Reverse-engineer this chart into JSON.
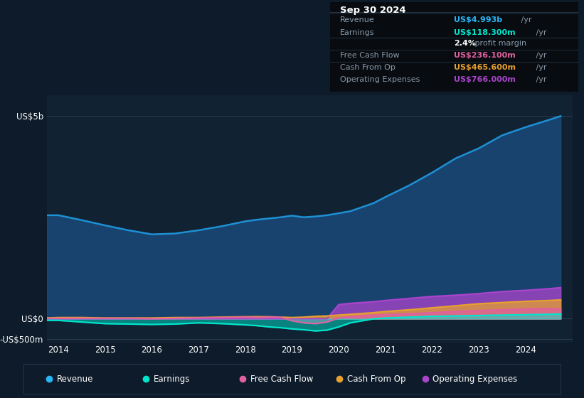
{
  "bg_color": "#0d1b2a",
  "plot_bg_color": "#112233",
  "ylabel_5b": "US$5b",
  "ylabel_0": "US$0",
  "ylabel_neg500m": "-US$500m",
  "x_years": [
    2013.75,
    2014.0,
    2014.5,
    2015.0,
    2015.5,
    2016.0,
    2016.5,
    2017.0,
    2017.5,
    2018.0,
    2018.25,
    2018.5,
    2018.75,
    2019.0,
    2019.25,
    2019.5,
    2019.75,
    2020.0,
    2020.25,
    2020.5,
    2020.75,
    2021.0,
    2021.5,
    2022.0,
    2022.5,
    2023.0,
    2023.5,
    2024.0,
    2024.5,
    2024.75
  ],
  "revenue": [
    2.55,
    2.55,
    2.43,
    2.3,
    2.18,
    2.08,
    2.1,
    2.18,
    2.28,
    2.4,
    2.44,
    2.47,
    2.5,
    2.54,
    2.5,
    2.52,
    2.55,
    2.6,
    2.65,
    2.75,
    2.85,
    3.0,
    3.28,
    3.6,
    3.95,
    4.2,
    4.52,
    4.72,
    4.9,
    4.993
  ],
  "earnings": [
    -0.04,
    -0.04,
    -0.08,
    -0.12,
    -0.13,
    -0.14,
    -0.13,
    -0.1,
    -0.12,
    -0.15,
    -0.17,
    -0.2,
    -0.22,
    -0.25,
    -0.27,
    -0.3,
    -0.28,
    -0.2,
    -0.1,
    -0.05,
    0.0,
    0.02,
    0.04,
    0.06,
    0.07,
    0.08,
    0.09,
    0.1,
    0.11,
    0.118
  ],
  "free_cash_flow": [
    0.01,
    0.01,
    0.01,
    0.01,
    0.01,
    0.0,
    0.01,
    0.02,
    0.03,
    0.04,
    0.03,
    0.04,
    0.04,
    -0.05,
    -0.1,
    -0.12,
    -0.08,
    0.02,
    0.05,
    0.07,
    0.09,
    0.1,
    0.12,
    0.15,
    0.18,
    0.2,
    0.22,
    0.24,
    0.25,
    0.236
  ],
  "cash_from_op": [
    0.02,
    0.03,
    0.03,
    0.02,
    0.02,
    0.02,
    0.03,
    0.03,
    0.04,
    0.05,
    0.05,
    0.05,
    0.04,
    0.03,
    0.04,
    0.06,
    0.07,
    0.09,
    0.11,
    0.13,
    0.15,
    0.18,
    0.22,
    0.27,
    0.32,
    0.37,
    0.4,
    0.43,
    0.45,
    0.4656
  ],
  "operating_expenses": [
    0.0,
    0.0,
    0.0,
    0.0,
    0.0,
    0.0,
    0.0,
    0.0,
    0.0,
    0.0,
    0.0,
    0.0,
    0.0,
    0.0,
    0.0,
    0.0,
    0.0,
    0.35,
    0.38,
    0.4,
    0.42,
    0.45,
    0.5,
    0.55,
    0.58,
    0.62,
    0.67,
    0.7,
    0.74,
    0.766
  ],
  "revenue_color": "#1e90d4",
  "revenue_fill_color": "#1a4a7a",
  "earnings_color": "#00e5cc",
  "earnings_fill_color": "#00e5cc",
  "free_cash_flow_color": "#e060a0",
  "free_cash_flow_fill_color": "#e060a0",
  "cash_from_op_color": "#e8a030",
  "cash_from_op_fill_color": "#e8a030",
  "operating_expenses_color": "#aa44cc",
  "operating_expenses_fill_color": "#aa44cc",
  "info_box": {
    "date": "Sep 30 2024",
    "rows": [
      {
        "label": "Revenue",
        "value": "US$4.993b",
        "suffix": " /yr",
        "value_color": "#29b6f6"
      },
      {
        "label": "Earnings",
        "value": "US$118.300m",
        "suffix": " /yr",
        "value_color": "#00e5cc"
      },
      {
        "label": "",
        "value": "2.4%",
        "suffix": " profit margin",
        "value_color": "white"
      },
      {
        "label": "Free Cash Flow",
        "value": "US$236.100m",
        "suffix": " /yr",
        "value_color": "#e060a0"
      },
      {
        "label": "Cash From Op",
        "value": "US$465.600m",
        "suffix": " /yr",
        "value_color": "#e8a030"
      },
      {
        "label": "Operating Expenses",
        "value": "US$766.000m",
        "suffix": " /yr",
        "value_color": "#aa44cc"
      }
    ]
  },
  "legend_items": [
    {
      "label": "Revenue",
      "color": "#29b6f6"
    },
    {
      "label": "Earnings",
      "color": "#00e5cc"
    },
    {
      "label": "Free Cash Flow",
      "color": "#e060a0"
    },
    {
      "label": "Cash From Op",
      "color": "#e8a030"
    },
    {
      "label": "Operating Expenses",
      "color": "#aa44cc"
    }
  ],
  "grid_color": "#2a3d52",
  "label_color": "#8899aa",
  "divider_color": "#2a3d52"
}
